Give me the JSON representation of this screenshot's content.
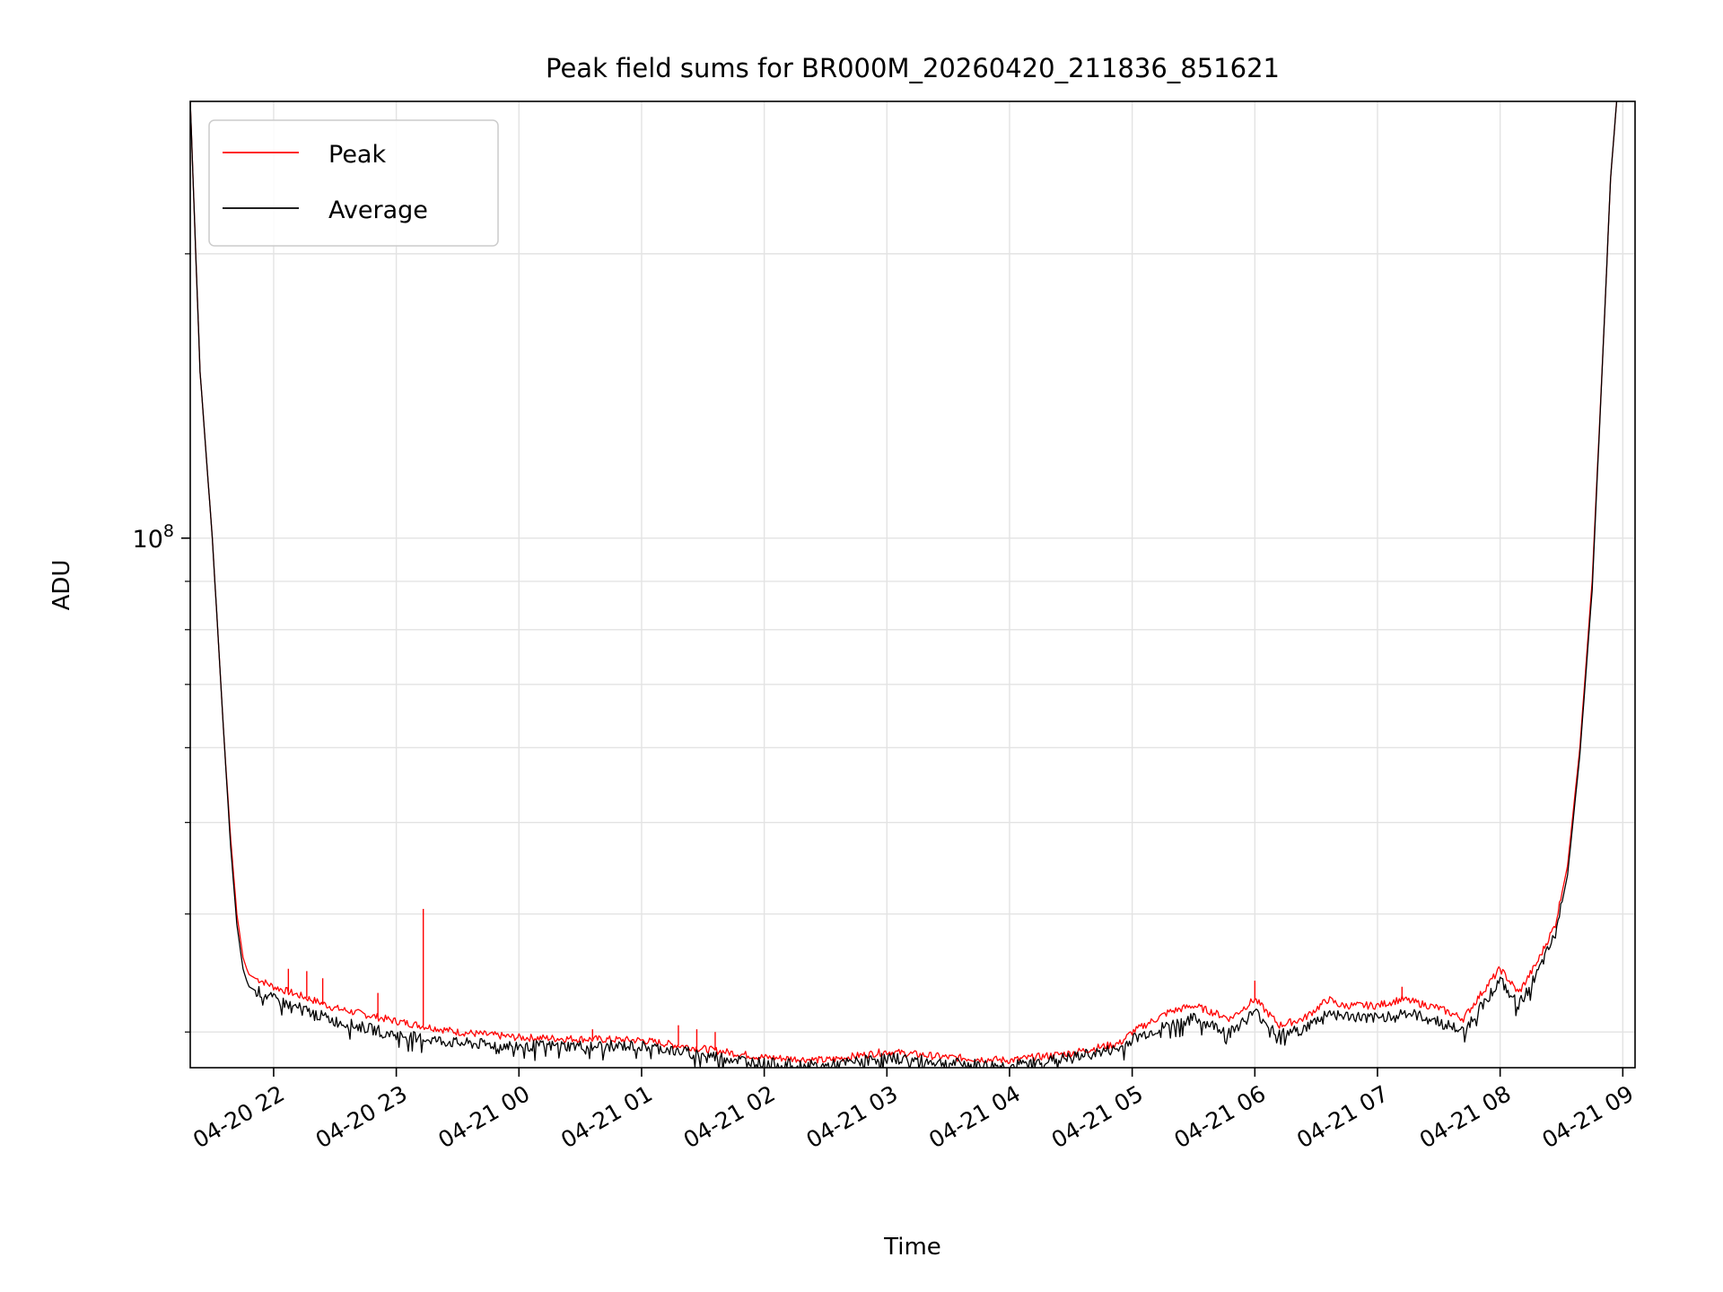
{
  "chart_data": {
    "type": "line",
    "title": "Peak field sums for BR000M_20260420_211836_851621",
    "xlabel": "Time",
    "ylabel": "ADU",
    "y_scale": "log",
    "ylim": [
      27500000.0,
      290000000.0
    ],
    "xlim_hours": [
      -0.68,
      11.1
    ],
    "grid": true,
    "legend_position": "upper-left",
    "x_ticks": [
      {
        "hour": 0,
        "label": "04-20 22"
      },
      {
        "hour": 1,
        "label": "04-20 23"
      },
      {
        "hour": 2,
        "label": "04-21 00"
      },
      {
        "hour": 3,
        "label": "04-21 01"
      },
      {
        "hour": 4,
        "label": "04-21 02"
      },
      {
        "hour": 5,
        "label": "04-21 03"
      },
      {
        "hour": 6,
        "label": "04-21 04"
      },
      {
        "hour": 7,
        "label": "04-21 05"
      },
      {
        "hour": 8,
        "label": "04-21 06"
      },
      {
        "hour": 9,
        "label": "04-21 07"
      },
      {
        "hour": 10,
        "label": "04-21 08"
      },
      {
        "hour": 11,
        "label": "04-21 09"
      }
    ],
    "y_major_ticks": [
      {
        "value": 100000000.0,
        "base": "10",
        "exp": "8"
      }
    ],
    "y_minor_ticks": [
      30000000.0,
      40000000.0,
      50000000.0,
      60000000.0,
      70000000.0,
      80000000.0,
      90000000.0,
      200000000.0
    ],
    "hours_since": "04-20 22:00",
    "series": [
      {
        "name": "Peak",
        "color": "#ff0000",
        "x": [
          -0.68,
          -0.6,
          -0.5,
          -0.4,
          -0.35,
          -0.3,
          -0.25,
          -0.22,
          -0.2,
          -0.15,
          -0.1,
          0.0,
          0.3,
          0.5,
          0.8,
          1.0,
          1.5,
          2.0,
          2.5,
          3.0,
          3.5,
          4.0,
          4.5,
          5.0,
          5.5,
          6.0,
          6.5,
          6.9,
          7.0,
          7.3,
          7.5,
          7.8,
          8.0,
          8.2,
          8.4,
          8.6,
          8.7,
          9.0,
          9.2,
          9.5,
          9.7,
          9.85,
          10.0,
          10.15,
          10.3,
          10.45,
          10.55,
          10.65,
          10.75,
          10.85,
          10.9,
          10.95
        ],
        "y": [
          290000000.0,
          150000000.0,
          100000000.0,
          60000000.0,
          48000000.0,
          40000000.0,
          36000000.0,
          35000000.0,
          34500000.0,
          34200000.0,
          34000000.0,
          33500000.0,
          32500000.0,
          31800000.0,
          31200000.0,
          30800000.0,
          30000000.0,
          29600000.0,
          29500000.0,
          29400000.0,
          28800000.0,
          28200000.0,
          28000000.0,
          28600000.0,
          28200000.0,
          28000000.0,
          28500000.0,
          29200000.0,
          30000000.0,
          31500000.0,
          32000000.0,
          31000000.0,
          32500000.0,
          30500000.0,
          31000000.0,
          32500000.0,
          32000000.0,
          32000000.0,
          32500000.0,
          31800000.0,
          31000000.0,
          33000000.0,
          35000000.0,
          33000000.0,
          35500000.0,
          39000000.0,
          45000000.0,
          60000000.0,
          90000000.0,
          170000000.0,
          240000000.0,
          290000000.0
        ],
        "spikes": [
          {
            "x": 0.12,
            "y": 35000000.0
          },
          {
            "x": 0.27,
            "y": 34800000.0
          },
          {
            "x": 0.4,
            "y": 34200000.0
          },
          {
            "x": 0.85,
            "y": 33000000.0
          },
          {
            "x": 1.22,
            "y": 40500000.0
          },
          {
            "x": 2.6,
            "y": 30200000.0
          },
          {
            "x": 3.3,
            "y": 30500000.0
          },
          {
            "x": 3.45,
            "y": 30200000.0
          },
          {
            "x": 3.6,
            "y": 30000000.0
          },
          {
            "x": 8.0,
            "y": 34000000.0
          },
          {
            "x": 9.2,
            "y": 33500000.0
          }
        ]
      },
      {
        "name": "Average",
        "color": "#000000",
        "x": [
          -0.68,
          -0.6,
          -0.5,
          -0.4,
          -0.35,
          -0.3,
          -0.25,
          -0.22,
          -0.2,
          -0.15,
          -0.1,
          0.0,
          0.3,
          0.5,
          0.8,
          1.0,
          1.5,
          2.0,
          2.5,
          3.0,
          3.5,
          4.0,
          4.5,
          5.0,
          5.5,
          6.0,
          6.5,
          6.9,
          7.0,
          7.3,
          7.5,
          7.8,
          8.0,
          8.2,
          8.4,
          8.6,
          8.7,
          9.0,
          9.2,
          9.5,
          9.7,
          9.85,
          10.0,
          10.15,
          10.3,
          10.45,
          10.55,
          10.65,
          10.75,
          10.85,
          10.9,
          10.95
        ],
        "y": [
          290000000.0,
          150000000.0,
          100000000.0,
          60000000.0,
          47000000.0,
          39000000.0,
          35000000.0,
          34000000.0,
          33500000.0,
          33200000.0,
          33000000.0,
          32500000.0,
          31500000.0,
          30800000.0,
          30200000.0,
          29800000.0,
          29200000.0,
          29000000.0,
          29000000.0,
          29000000.0,
          28400000.0,
          27800000.0,
          27600000.0,
          28200000.0,
          27800000.0,
          27600000.0,
          28200000.0,
          28800000.0,
          29500000.0,
          30500000.0,
          31000000.0,
          30000000.0,
          31500000.0,
          29800000.0,
          30200000.0,
          31500000.0,
          31200000.0,
          31000000.0,
          31500000.0,
          30800000.0,
          30000000.0,
          32000000.0,
          34000000.0,
          32000000.0,
          34500000.0,
          38000000.0,
          44000000.0,
          59000000.0,
          88000000.0,
          170000000.0,
          240000000.0,
          290000000.0
        ]
      }
    ]
  }
}
